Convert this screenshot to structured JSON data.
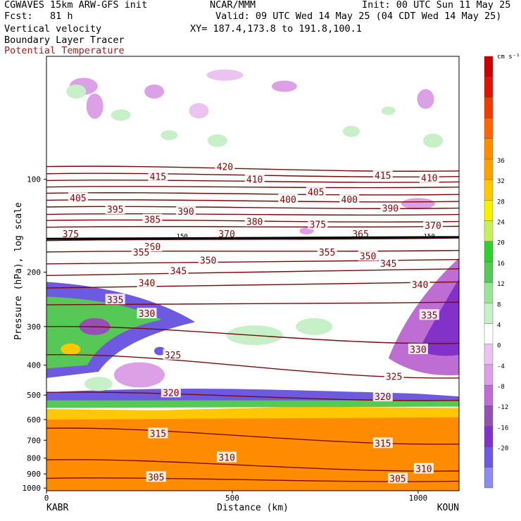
{
  "header": {
    "model": "CGWAVES 15km ARW-GFS init",
    "center": "NCAR/MMM",
    "init": "Init: 00 UTC Sun 11 May 25",
    "fcst": "Fcst:   81 h",
    "valid": "Valid: 09 UTC Wed 14 May 25 (04 CDT Wed 14 May 25)",
    "fields": [
      "Vertical velocity",
      "Boundary Layer Tracer",
      "Potential Temperature"
    ],
    "xy": "XY= 187.4,173.8 to 191.8,100.1"
  },
  "colors": {
    "theta": "#7a0a0a",
    "pbl": "#000000",
    "shading": [
      "#8c8cf0",
      "#6e5ae0",
      "#8232c8",
      "#9650b4",
      "#be6ed2",
      "#dca0e6",
      "#ebc3f0",
      "#ffffff",
      "#c8f0c8",
      "#96e696",
      "#55c855",
      "#2fd02f",
      "#c8f05a",
      "#f5f000",
      "#ffc800",
      "#ffa000",
      "#ff8c00",
      "#ff6400",
      "#f03c00",
      "#dc1400",
      "#c80000"
    ]
  },
  "chart_data": {
    "type": "heatmap",
    "title": "",
    "xlabel": "Distance (km)",
    "ylabel": "Pressure (hPa), log scale",
    "xlim": [
      0,
      1110
    ],
    "x_ticks": [
      0,
      500,
      1000
    ],
    "x_endpoints": [
      "KABR",
      "KOUN"
    ],
    "y_scale": "log",
    "ylim": [
      1020,
      40
    ],
    "y_ticks": [
      100,
      200,
      300,
      400,
      500,
      600,
      700,
      800,
      900,
      1000
    ],
    "colorbar": {
      "unit": "cm s⁻¹",
      "labels": [
        36,
        32,
        28,
        24,
        20,
        16,
        12,
        8,
        4,
        0,
        -4,
        -8,
        -12,
        -16,
        -20
      ]
    },
    "series": [
      {
        "name": "Potential Temperature",
        "labels": [
          {
            "text": "420",
            "x": 480,
            "p": 91
          },
          {
            "text": "415",
            "x": 300,
            "p": 98
          },
          {
            "text": "415",
            "x": 905,
            "p": 97
          },
          {
            "text": "410",
            "x": 560,
            "p": 100
          },
          {
            "text": "410",
            "x": 1030,
            "p": 99
          },
          {
            "text": "405",
            "x": 85,
            "p": 115
          },
          {
            "text": "405",
            "x": 725,
            "p": 110
          },
          {
            "text": "400",
            "x": 650,
            "p": 116
          },
          {
            "text": "400",
            "x": 815,
            "p": 116
          },
          {
            "text": "395",
            "x": 185,
            "p": 125
          },
          {
            "text": "390",
            "x": 375,
            "p": 127
          },
          {
            "text": "390",
            "x": 925,
            "p": 124
          },
          {
            "text": "385",
            "x": 285,
            "p": 135
          },
          {
            "text": "380",
            "x": 560,
            "p": 137
          },
          {
            "text": "375",
            "x": 730,
            "p": 140
          },
          {
            "text": "375",
            "x": 65,
            "p": 150
          },
          {
            "text": "370",
            "x": 485,
            "p": 150
          },
          {
            "text": "370",
            "x": 1040,
            "p": 141
          },
          {
            "text": "365",
            "x": 845,
            "p": 150
          },
          {
            "text": "360",
            "x": 285,
            "p": 165
          },
          {
            "text": "355",
            "x": 255,
            "p": 172
          },
          {
            "text": "355",
            "x": 755,
            "p": 172
          },
          {
            "text": "350",
            "x": 435,
            "p": 183
          },
          {
            "text": "350",
            "x": 865,
            "p": 177
          },
          {
            "text": "345",
            "x": 355,
            "p": 198
          },
          {
            "text": "345",
            "x": 920,
            "p": 187
          },
          {
            "text": "340",
            "x": 270,
            "p": 216
          },
          {
            "text": "340",
            "x": 1005,
            "p": 219
          },
          {
            "text": "335",
            "x": 185,
            "p": 245
          },
          {
            "text": "335",
            "x": 1030,
            "p": 275
          },
          {
            "text": "330",
            "x": 270,
            "p": 272
          },
          {
            "text": "330",
            "x": 1000,
            "p": 355
          },
          {
            "text": "325",
            "x": 340,
            "p": 370
          },
          {
            "text": "325",
            "x": 935,
            "p": 435
          },
          {
            "text": "320",
            "x": 335,
            "p": 490
          },
          {
            "text": "320",
            "x": 905,
            "p": 505
          },
          {
            "text": "315",
            "x": 300,
            "p": 665
          },
          {
            "text": "315",
            "x": 905,
            "p": 715
          },
          {
            "text": "310",
            "x": 485,
            "p": 795
          },
          {
            "text": "310",
            "x": 1015,
            "p": 865
          },
          {
            "text": "305",
            "x": 295,
            "p": 920
          },
          {
            "text": "305",
            "x": 945,
            "p": 930
          }
        ]
      },
      {
        "name": "Boundary Layer Tracer",
        "labels": [
          {
            "text": "150",
            "x": 365,
            "p": 153
          },
          {
            "text": "150",
            "x": 1030,
            "p": 153
          }
        ]
      }
    ]
  }
}
